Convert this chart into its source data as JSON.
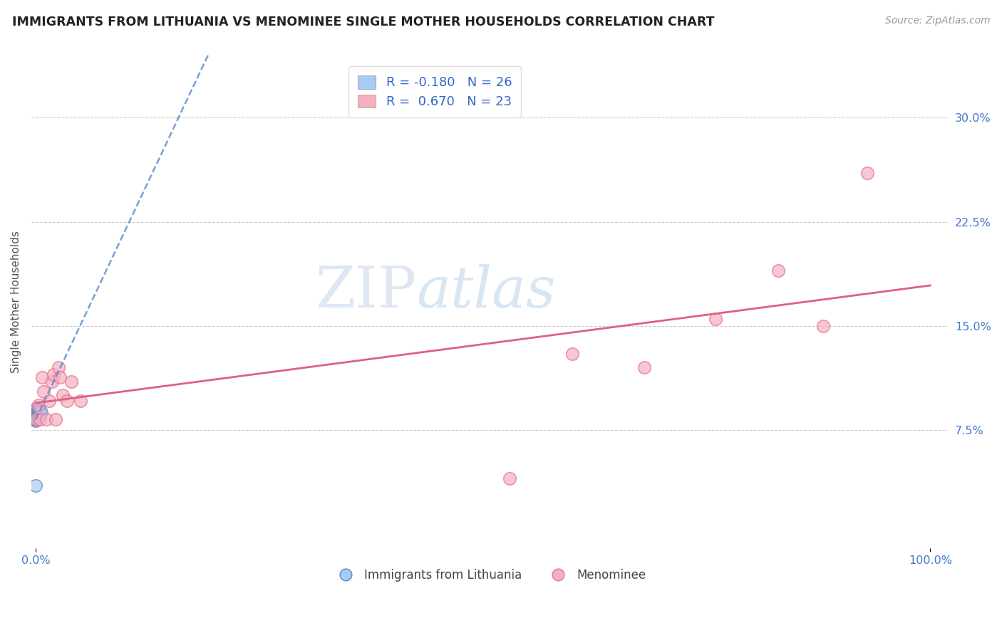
{
  "title": "IMMIGRANTS FROM LITHUANIA VS MENOMINEE SINGLE MOTHER HOUSEHOLDS CORRELATION CHART",
  "source": "Source: ZipAtlas.com",
  "ylabel": "Single Mother Households",
  "y_ticks_right": [
    0.075,
    0.15,
    0.225,
    0.3
  ],
  "y_tick_labels_right": [
    "7.5%",
    "15.0%",
    "22.5%",
    "30.0%"
  ],
  "xlim": [
    -0.005,
    1.02
  ],
  "ylim": [
    -0.01,
    0.345
  ],
  "blue_fill": "#A8CBF0",
  "blue_edge": "#5588CC",
  "pink_fill": "#F5B0C0",
  "pink_edge": "#E87090",
  "blue_line_color": "#5588CC",
  "pink_line_color": "#E06080",
  "watermark_zip": "ZIP",
  "watermark_atlas": "atlas",
  "legend_label_blue": "Immigrants from Lithuania",
  "legend_label_pink": "Menominee",
  "legend_r1": "-0.180",
  "legend_n1": "26",
  "legend_r2": "0.670",
  "legend_n2": "23",
  "blue_points_x": [
    0.0,
    0.0,
    0.0,
    0.0,
    0.0,
    0.0,
    0.0,
    0.0,
    0.0,
    0.001,
    0.001,
    0.001,
    0.001,
    0.001,
    0.002,
    0.002,
    0.002,
    0.002,
    0.003,
    0.003,
    0.004,
    0.004,
    0.005,
    0.005,
    0.006,
    0.0
  ],
  "blue_points_y": [
    0.082,
    0.083,
    0.084,
    0.085,
    0.086,
    0.087,
    0.088,
    0.089,
    0.09,
    0.083,
    0.085,
    0.087,
    0.089,
    0.091,
    0.084,
    0.086,
    0.088,
    0.09,
    0.086,
    0.089,
    0.087,
    0.09,
    0.086,
    0.089,
    0.088,
    0.035
  ],
  "pink_points_x": [
    0.001,
    0.003,
    0.005,
    0.007,
    0.009,
    0.012,
    0.015,
    0.018,
    0.02,
    0.022,
    0.025,
    0.027,
    0.03,
    0.035,
    0.04,
    0.05,
    0.53,
    0.6,
    0.68,
    0.76,
    0.83,
    0.88,
    0.93
  ],
  "pink_points_y": [
    0.083,
    0.093,
    0.083,
    0.113,
    0.103,
    0.083,
    0.096,
    0.11,
    0.115,
    0.083,
    0.12,
    0.113,
    0.1,
    0.096,
    0.11,
    0.096,
    0.04,
    0.13,
    0.12,
    0.155,
    0.19,
    0.15,
    0.26
  ]
}
